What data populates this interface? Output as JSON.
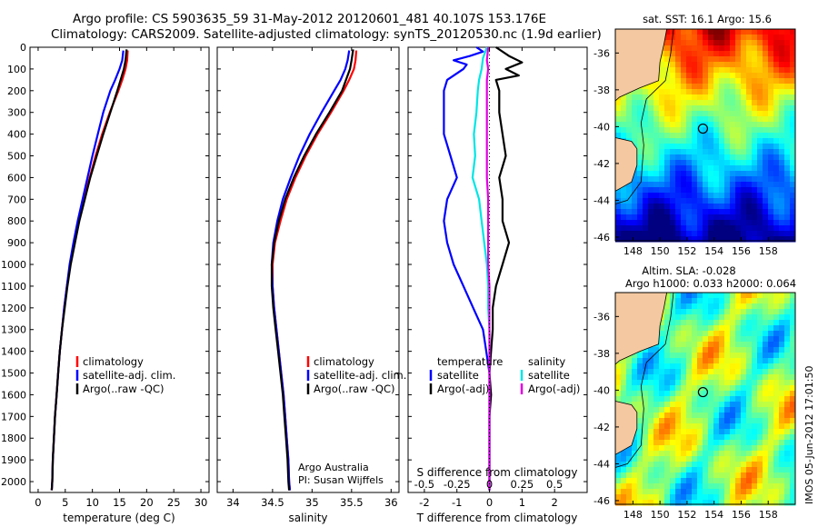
{
  "header": {
    "line1": "Argo profile: CS 5903635_59 31-May-2012 20120601_481 40.107S 153.176E",
    "line2": "Climatology: CARS2009. Satellite-adjusted climatology: synTS_20120530.nc (1.9d earlier)"
  },
  "colors": {
    "climatology": "#ff0000",
    "satellite": "#0000ff",
    "argo": "#000000",
    "sat_salinity": "#00e5e5",
    "argo_salinity": "#e000e0",
    "land": "#f4c8a0"
  },
  "depth_axis": {
    "ylim": [
      0,
      2050
    ],
    "ticks": [
      0,
      100,
      200,
      300,
      400,
      500,
      600,
      700,
      800,
      900,
      1000,
      1100,
      1200,
      1300,
      1400,
      1500,
      1600,
      1700,
      1800,
      1900,
      2000
    ]
  },
  "chart_data": [
    {
      "id": "temperature",
      "type": "line",
      "xlabel": "temperature (deg C)",
      "xlim": [
        -1.5,
        31.5
      ],
      "xticks": [
        0,
        5,
        10,
        15,
        20,
        25,
        30
      ],
      "legend": [
        "climatology",
        "satellite-adj. clim.",
        "Argo(..raw -QC)"
      ],
      "legend_position": "lower-left",
      "series": [
        {
          "name": "climatology",
          "color": "red",
          "depth": [
            15,
            60,
            100,
            150,
            200,
            300,
            400,
            500,
            600,
            700,
            800,
            900,
            1000,
            1100,
            1200,
            1300,
            1400,
            1500,
            1600,
            1700,
            1800,
            1900,
            2000,
            2040
          ],
          "values": [
            16.5,
            16.4,
            16.1,
            15.5,
            14.8,
            13.2,
            11.8,
            10.6,
            9.5,
            8.4,
            7.4,
            6.6,
            5.9,
            5.3,
            4.8,
            4.4,
            4.0,
            3.7,
            3.4,
            3.1,
            2.9,
            2.7,
            2.6,
            2.5
          ]
        },
        {
          "name": "satellite-adj. clim.",
          "color": "blue",
          "depth": [
            15,
            60,
            100,
            150,
            200,
            300,
            400,
            500,
            600,
            700,
            800,
            900,
            1000,
            1100,
            1200,
            1300,
            1400,
            1500,
            1600,
            1700,
            1800,
            1900,
            2000,
            2040
          ],
          "values": [
            15.7,
            15.5,
            15.0,
            14.2,
            13.3,
            12.0,
            11.0,
            10.0,
            9.1,
            8.2,
            7.3,
            6.5,
            5.8,
            5.3,
            4.8,
            4.4,
            4.0,
            3.7,
            3.4,
            3.1,
            2.9,
            2.7,
            2.6,
            2.5
          ]
        },
        {
          "name": "Argo(..raw -QC)",
          "color": "black",
          "depth": [
            10,
            60,
            100,
            150,
            200,
            300,
            400,
            500,
            600,
            700,
            800,
            900,
            1000,
            1100,
            1200,
            1300,
            1400,
            1500,
            1600,
            1700,
            1800,
            1900,
            2000,
            2040
          ],
          "values": [
            16.3,
            16.1,
            15.8,
            15.2,
            14.6,
            13.3,
            12.0,
            10.8,
            9.6,
            8.6,
            7.6,
            6.8,
            6.0,
            5.4,
            4.9,
            4.4,
            4.0,
            3.7,
            3.4,
            3.1,
            2.9,
            2.7,
            2.6,
            2.5
          ]
        }
      ]
    },
    {
      "id": "salinity",
      "type": "line",
      "xlabel": "salinity",
      "xlim": [
        33.8,
        36.1
      ],
      "xticks": [
        34,
        34.5,
        35,
        35.5,
        36
      ],
      "legend": [
        "climatology",
        "satellite-adj. clim.",
        "Argo(..raw -QC)"
      ],
      "legend_position": "lower-left",
      "annotation": [
        "Argo Australia",
        "PI: Susan Wijffels"
      ],
      "series": [
        {
          "name": "climatology",
          "color": "red",
          "depth": [
            15,
            60,
            100,
            150,
            200,
            300,
            400,
            500,
            600,
            700,
            800,
            900,
            1000,
            1100,
            1200,
            1300,
            1400,
            1500,
            1600,
            1700,
            1800,
            1900,
            2000,
            2040
          ],
          "values": [
            35.56,
            35.55,
            35.53,
            35.47,
            35.4,
            35.24,
            35.07,
            34.92,
            34.79,
            34.68,
            34.6,
            34.53,
            34.5,
            34.5,
            34.52,
            34.55,
            34.58,
            34.61,
            34.64,
            34.66,
            34.68,
            34.7,
            34.71,
            34.72
          ]
        },
        {
          "name": "satellite-adj. clim.",
          "color": "blue",
          "depth": [
            15,
            60,
            100,
            150,
            200,
            300,
            400,
            500,
            600,
            700,
            800,
            900,
            1000,
            1100,
            1200,
            1300,
            1400,
            1500,
            1600,
            1700,
            1800,
            1900,
            2000,
            2040
          ],
          "values": [
            35.47,
            35.45,
            35.42,
            35.36,
            35.28,
            35.12,
            34.97,
            34.84,
            34.73,
            34.63,
            34.56,
            34.51,
            34.49,
            34.5,
            34.52,
            34.55,
            34.58,
            34.61,
            34.64,
            34.66,
            34.68,
            34.7,
            34.71,
            34.72
          ]
        },
        {
          "name": "Argo(..raw -QC)",
          "color": "black",
          "depth": [
            10,
            60,
            100,
            150,
            200,
            300,
            400,
            500,
            600,
            700,
            800,
            900,
            1000,
            1100,
            1200,
            1300,
            1400,
            1500,
            1600,
            1700,
            1800,
            1900,
            2000,
            2040
          ],
          "values": [
            35.52,
            35.5,
            35.48,
            35.43,
            35.38,
            35.22,
            35.05,
            34.9,
            34.77,
            34.66,
            34.58,
            34.52,
            34.49,
            34.49,
            34.51,
            34.54,
            34.57,
            34.6,
            34.63,
            34.65,
            34.67,
            34.69,
            34.7,
            34.71
          ]
        }
      ]
    },
    {
      "id": "differences",
      "type": "line",
      "xlabel": "T difference from climatology",
      "xlim": [
        -2.5,
        3.0
      ],
      "xticks": [
        -2,
        -1,
        0,
        1,
        2
      ],
      "top_axis_label": "S difference from climatology",
      "top_ticks": [
        "-0.5",
        "-0.25",
        "0",
        "0.25",
        "0.5"
      ],
      "legend_temperature": {
        "title": "temperature",
        "items": [
          "satellite",
          "Argo(-adj)"
        ]
      },
      "legend_salinity": {
        "title": "salinity",
        "items": [
          "satellite",
          "Argo(-adj)"
        ]
      },
      "series": [
        {
          "name": "temperature satellite",
          "color": "blue",
          "depth": [
            0,
            20,
            40,
            60,
            80,
            100,
            150,
            200,
            300,
            400,
            500,
            600,
            700,
            800,
            900,
            1000,
            1100,
            1200,
            1300,
            1400,
            1500,
            1600,
            1700,
            1800,
            1900,
            2000,
            2040
          ],
          "values": [
            -0.4,
            -0.2,
            -0.6,
            -1.1,
            -0.7,
            -0.8,
            -1.3,
            -1.4,
            -1.4,
            -1.4,
            -1.2,
            -1.0,
            -1.3,
            -1.4,
            -1.3,
            -1.1,
            -0.8,
            -0.5,
            -0.2,
            -0.1,
            0.0,
            0.0,
            0.0,
            0.0,
            0.0,
            0.0,
            0.0
          ]
        },
        {
          "name": "temperature Argo(-adj)",
          "color": "black",
          "depth": [
            0,
            40,
            70,
            100,
            130,
            150,
            200,
            300,
            400,
            500,
            600,
            700,
            800,
            900,
            1000,
            1100,
            1200,
            1300,
            1400,
            1500,
            1600,
            1700,
            1800,
            1900,
            2000,
            2040
          ],
          "values": [
            0.2,
            0.6,
            1.0,
            0.5,
            0.9,
            0.2,
            0.3,
            0.3,
            0.4,
            0.5,
            0.3,
            0.4,
            0.4,
            0.6,
            0.4,
            0.2,
            0.1,
            0.1,
            0.05,
            0.0,
            0.05,
            0.0,
            0.0,
            0.0,
            0.0,
            0.0
          ]
        },
        {
          "name": "salinity satellite",
          "color": "cyan",
          "depth": [
            0,
            50,
            100,
            150,
            200,
            300,
            400,
            500,
            600,
            700,
            800,
            900,
            1000,
            1100,
            1200,
            1300,
            1400,
            1500,
            1600,
            1700,
            1800,
            1900,
            2000,
            2040
          ],
          "values": [
            -0.02,
            -0.05,
            -0.06,
            -0.08,
            -0.09,
            -0.1,
            -0.12,
            -0.11,
            -0.13,
            -0.08,
            -0.06,
            -0.04,
            -0.02,
            -0.01,
            -0.01,
            0.0,
            0.0,
            0.0,
            0.0,
            0.0,
            0.0,
            0.0,
            0.0,
            0.0
          ]
        },
        {
          "name": "salinity Argo(-adj)",
          "color": "magenta",
          "depth": [
            0,
            60,
            100,
            150,
            200,
            300,
            400,
            500,
            600,
            700,
            800,
            900,
            1000,
            1100,
            1200,
            1300,
            1400,
            1500,
            1600,
            1700,
            1800,
            1900,
            2000,
            2040
          ],
          "values": [
            -0.01,
            -0.02,
            -0.01,
            -0.02,
            -0.02,
            -0.02,
            -0.02,
            -0.02,
            -0.02,
            -0.01,
            -0.01,
            -0.01,
            -0.01,
            0.0,
            0.0,
            0.0,
            0.0,
            0.0,
            0.0,
            0.0,
            0.0,
            0.0,
            0.0,
            0.0
          ]
        }
      ]
    }
  ],
  "map_sst": {
    "title": "sat. SST: 16.1  Argo: 15.6",
    "lat_ticks": [
      "-36",
      "-38",
      "-40",
      "-42",
      "-44",
      "-46"
    ],
    "lon_ticks": [
      "148",
      "150",
      "152",
      "154",
      "156",
      "158"
    ],
    "profile_marker": {
      "lon": 153.176,
      "lat": -40.107
    }
  },
  "map_sla": {
    "title_line1": "Altim. SLA: -0.028",
    "title_line2": "Argo h1000: 0.033  h2000: 0.064",
    "lat_ticks": [
      "-36",
      "-38",
      "-40",
      "-42",
      "-44",
      "-46"
    ],
    "lon_ticks": [
      "148",
      "150",
      "152",
      "154",
      "156",
      "158"
    ],
    "profile_marker": {
      "lon": 153.176,
      "lat": -40.107
    }
  },
  "footer_stamp": "IMOS 05-Jun-2012 17:01:50"
}
